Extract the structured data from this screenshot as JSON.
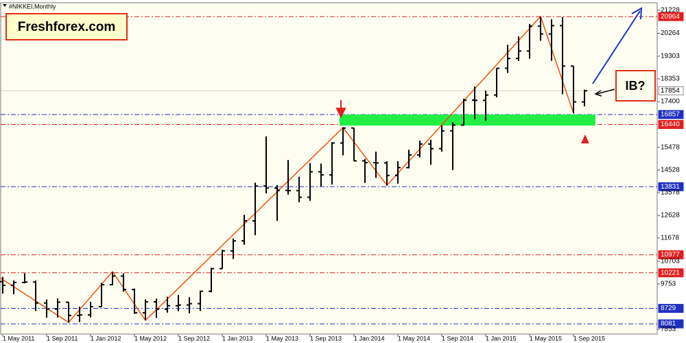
{
  "chart_data": {
    "type": "ohlc",
    "title": "#NIKKEI,Monthly",
    "brand": "Freshforex.com",
    "annotation": "IB?",
    "categories": [
      "1 May 2011",
      null,
      null,
      null,
      "1 Sep 2011",
      null,
      null,
      null,
      "1 Jan 2012",
      null,
      null,
      null,
      "1 May 2012",
      null,
      null,
      null,
      "1 Sep 2012",
      null,
      null,
      null,
      "1 Jan 2013",
      null,
      null,
      null,
      "1 May 2013",
      null,
      null,
      null,
      "1 Sep 2013",
      null,
      null,
      null,
      "1 Jan 2014",
      null,
      null,
      null,
      "1 May 2014",
      null,
      null,
      null,
      "1 Sep 2014",
      null,
      null,
      null,
      "1 Jan 2015",
      null,
      null,
      null,
      "1 May 2015",
      null,
      null,
      null,
      "1 Sep 2015",
      null
    ],
    "open": [
      9850,
      9694,
      9816,
      9833,
      8955,
      8700,
      8988,
      8434,
      8455,
      8802,
      9723,
      10084,
      9520,
      8543,
      9007,
      8695,
      8840,
      8870,
      8928,
      9446,
      10395,
      11139,
      11559,
      12398,
      13861,
      13775,
      13677,
      13668,
      13389,
      14456,
      14328,
      15662,
      16291,
      14915,
      14841,
      14828,
      14304,
      14632,
      15162,
      15621,
      15425,
      16174,
      16414,
      17460,
      17451,
      17674,
      18798,
      19207,
      19520,
      20563,
      20236,
      20585,
      18890,
      17388
    ],
    "high": [
      10050,
      9900,
      10200,
      9900,
      9100,
      9150,
      9000,
      8800,
      9000,
      9800,
      10250,
      10200,
      9560,
      9110,
      9140,
      9220,
      9290,
      9200,
      9480,
      10430,
      11190,
      11660,
      12650,
      14000,
      15940,
      13900,
      14950,
      14250,
      14820,
      14800,
      15700,
      16320,
      16300,
      15000,
      15300,
      14900,
      14900,
      15380,
      15760,
      15800,
      16400,
      16530,
      17520,
      18030,
      17860,
      18800,
      19780,
      20130,
      20660,
      20960,
      20850,
      20950,
      18890,
      17900
    ],
    "low": [
      9350,
      9320,
      9780,
      8620,
      8340,
      8350,
      8130,
      8160,
      8350,
      8800,
      9700,
      9430,
      8500,
      8240,
      8330,
      8550,
      8610,
      8520,
      8620,
      9400,
      10390,
      10800,
      11400,
      11800,
      13550,
      12400,
      13500,
      13180,
      13240,
      13850,
      13920,
      15150,
      14900,
      13990,
      14200,
      13880,
      13960,
      14600,
      15060,
      14750,
      15300,
      14530,
      16400,
      16670,
      16590,
      17580,
      18600,
      19100,
      19200,
      19950,
      19110,
      17710,
      16900,
      17200
    ],
    "close": [
      9694,
      9816,
      9833,
      8955,
      8700,
      8988,
      8434,
      8455,
      8802,
      9723,
      10084,
      9520,
      8543,
      9007,
      8695,
      8840,
      8870,
      8928,
      9446,
      10395,
      11139,
      11559,
      12398,
      13861,
      13775,
      13677,
      13668,
      13389,
      14456,
      14328,
      15662,
      16291,
      14915,
      14841,
      14828,
      14304,
      14632,
      15162,
      15621,
      15425,
      16174,
      16414,
      17460,
      17451,
      17674,
      18798,
      19207,
      19520,
      20563,
      20236,
      20585,
      18890,
      17388,
      17854
    ],
    "color": "#000000",
    "ylim": [
      7652,
      21516
    ],
    "yticks": [
      21228,
      20264,
      19303,
      18353,
      17400,
      15478,
      14528,
      13578,
      12628,
      11678,
      10703,
      9753,
      7853
    ],
    "levels": [
      {
        "value": 20964,
        "color": "#e02020"
      },
      {
        "value": 17854,
        "color": "#b8b8b8"
      },
      {
        "value": 16857,
        "color": "#2030c0"
      },
      {
        "value": 16440,
        "color": "#e02020"
      },
      {
        "value": 13831,
        "color": "#2030c0"
      },
      {
        "value": 10977,
        "color": "#e02020"
      },
      {
        "value": 10221,
        "color": "#e02020"
      },
      {
        "value": 8729,
        "color": "#2030c0"
      },
      {
        "value": 8081,
        "color": "#2030c0"
      }
    ]
  }
}
